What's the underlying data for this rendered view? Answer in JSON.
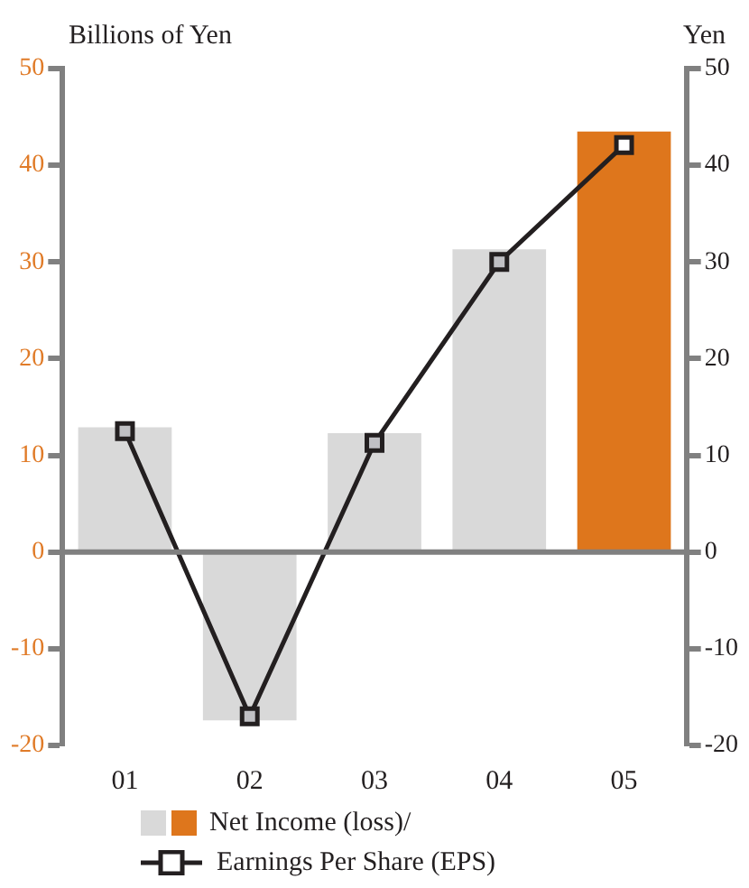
{
  "chart_data": {
    "type": "bar",
    "ylabel": "Billions of Yen",
    "y2label": "Yen",
    "categories": [
      "01",
      "02",
      "03",
      "04",
      "05"
    ],
    "series": [
      {
        "name": "Net Income (loss)/",
        "colors": [
          "#d9d9d9",
          "#d9d9d9",
          "#d9d9d9",
          "#d9d9d9",
          "#de761c"
        ],
        "values": [
          12.9,
          -17.4,
          12.3,
          31.3,
          43.5
        ]
      },
      {
        "name": "Earnings Per Share (EPS)",
        "type": "line",
        "axis": "y2",
        "color": "#231f20",
        "colors": [
          "#c0c0c4",
          "#c0c0c4",
          "#c0c0c4",
          "#c0c0c4",
          "#ffffff"
        ],
        "marker": "square",
        "values": [
          12.5,
          -17.0,
          11.3,
          30.0,
          42.1
        ]
      }
    ],
    "ylim": [
      -20,
      50
    ],
    "yticks": [
      -20,
      -10,
      0,
      10,
      20,
      30,
      40,
      50
    ],
    "y2lim": [
      -20,
      50
    ],
    "y2ticks": [
      -20,
      -10,
      0,
      10,
      20,
      30,
      40,
      50
    ],
    "legend": "bottom"
  }
}
